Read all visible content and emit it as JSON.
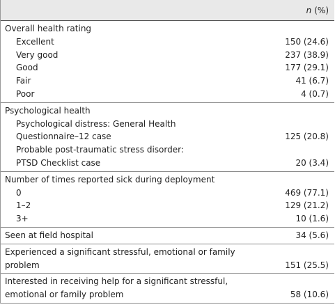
{
  "header": {
    "n_symbol": "n",
    "unit": "(%)"
  },
  "sections": [
    {
      "heading": [
        "Overall health rating"
      ],
      "rows": [
        {
          "lines": [
            "Excellent"
          ],
          "value": "150 (24.6)"
        },
        {
          "lines": [
            "Very good"
          ],
          "value": "237 (38.9)"
        },
        {
          "lines": [
            "Good"
          ],
          "value": "177 (29.1)"
        },
        {
          "lines": [
            "Fair"
          ],
          "value": "41 (6.7)"
        },
        {
          "lines": [
            "Poor"
          ],
          "value": "4 (0.7)"
        }
      ]
    },
    {
      "heading": [
        "Psychological health"
      ],
      "rows": [
        {
          "lines": [
            "Psychological distress: General Health",
            "Questionnaire–12 case"
          ],
          "value": "125 (20.8)"
        },
        {
          "lines": [
            "Probable post-traumatic stress disorder:",
            "PTSD Checklist case"
          ],
          "value": "20 (3.4)"
        }
      ]
    },
    {
      "heading": [
        "Number of times reported sick during deployment"
      ],
      "rows": [
        {
          "lines": [
            "0"
          ],
          "value": "469 (77.1)"
        },
        {
          "lines": [
            "1–2"
          ],
          "value": "129 (21.2)"
        },
        {
          "lines": [
            "3+"
          ],
          "value": "10 (1.6)"
        }
      ]
    },
    {
      "heading": [
        "Seen at field hospital"
      ],
      "value": "34 (5.6)"
    },
    {
      "heading": [
        "Experienced a significant stressful, emotional or family",
        "problem"
      ],
      "value": "151 (25.5)"
    },
    {
      "heading": [
        "Interested in receiving help for a significant stressful,",
        "emotional or family problem"
      ],
      "value": "58 (10.6)"
    }
  ]
}
